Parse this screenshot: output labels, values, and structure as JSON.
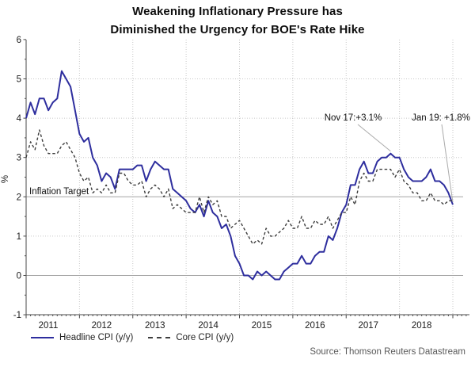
{
  "title": {
    "line1": "Weakening Inflationary Pressure has",
    "line2": "Diminished the Urgency for BOE's Rate Hike"
  },
  "annotations": {
    "inflation_target": "Inflation Target"
  },
  "legend": [
    {
      "label": "Headline CPI (y/y)",
      "style": "solid",
      "color": "#2e2e9e"
    },
    {
      "label": "Core CPI (y/y)",
      "style": "dashed",
      "color": "#3d3d3d"
    }
  ],
  "source": "Source: Thomson Reuters Datastream",
  "chart_data": {
    "type": "line",
    "xlabel": "",
    "ylabel": "%",
    "ylim": [
      -1,
      6
    ],
    "frequency": "monthly",
    "x_start": "2011-01",
    "x_end": "2019-01",
    "x_ticklabels": [
      "2011",
      "2012",
      "2013",
      "2014",
      "2015",
      "2016",
      "2017",
      "2018"
    ],
    "y_ticks": [
      -1,
      0,
      1,
      2,
      3,
      4,
      5,
      6
    ],
    "y_ticklabels": [
      "-1",
      "0",
      "1",
      "2",
      "3",
      "4",
      "5",
      "6"
    ],
    "dotted_gridlines": [
      1,
      3,
      4,
      5
    ],
    "solid_gridlines": [
      0,
      2
    ],
    "legend_position": "bottom-left",
    "series": [
      {
        "name": "Headline CPI (y/y)",
        "color": "#2e2e9e",
        "dash": null,
        "width": 2,
        "values": [
          4.0,
          4.4,
          4.1,
          4.5,
          4.5,
          4.2,
          4.4,
          4.5,
          5.2,
          5.0,
          4.8,
          4.2,
          3.6,
          3.4,
          3.5,
          3.0,
          2.8,
          2.4,
          2.6,
          2.5,
          2.2,
          2.7,
          2.7,
          2.7,
          2.7,
          2.8,
          2.8,
          2.4,
          2.7,
          2.9,
          2.8,
          2.7,
          2.7,
          2.2,
          2.1,
          2.0,
          1.9,
          1.7,
          1.6,
          1.8,
          1.5,
          1.9,
          1.6,
          1.5,
          1.2,
          1.3,
          1.0,
          0.5,
          0.3,
          0.0,
          0.0,
          -0.1,
          0.1,
          0.0,
          0.1,
          0.0,
          -0.1,
          -0.1,
          0.1,
          0.2,
          0.3,
          0.3,
          0.5,
          0.3,
          0.3,
          0.5,
          0.6,
          0.6,
          1.0,
          0.9,
          1.2,
          1.6,
          1.8,
          2.3,
          2.3,
          2.7,
          2.9,
          2.6,
          2.6,
          2.9,
          3.0,
          3.0,
          3.1,
          3.0,
          3.0,
          2.7,
          2.5,
          2.4,
          2.4,
          2.4,
          2.5,
          2.7,
          2.4,
          2.4,
          2.3,
          2.1,
          1.8
        ]
      },
      {
        "name": "Core CPI (y/y)",
        "color": "#3d3d3d",
        "dash": "3.5 2.8",
        "width": 1.4,
        "values": [
          3.0,
          3.4,
          3.2,
          3.7,
          3.3,
          3.1,
          3.1,
          3.1,
          3.3,
          3.4,
          3.2,
          3.0,
          2.6,
          2.4,
          2.5,
          2.1,
          2.2,
          2.1,
          2.3,
          2.1,
          2.1,
          2.6,
          2.6,
          2.4,
          2.3,
          2.3,
          2.4,
          2.0,
          2.2,
          2.3,
          2.2,
          2.0,
          2.2,
          1.7,
          1.8,
          1.7,
          1.6,
          1.6,
          1.6,
          2.0,
          1.6,
          2.0,
          1.8,
          1.9,
          1.5,
          1.5,
          1.2,
          1.3,
          1.4,
          1.2,
          1.0,
          0.8,
          0.9,
          0.8,
          1.2,
          1.0,
          1.0,
          1.1,
          1.2,
          1.4,
          1.2,
          1.2,
          1.5,
          1.2,
          1.2,
          1.4,
          1.3,
          1.3,
          1.5,
          1.2,
          1.4,
          1.6,
          1.6,
          2.0,
          1.8,
          2.4,
          2.6,
          2.4,
          2.4,
          2.7,
          2.7,
          2.7,
          2.7,
          2.5,
          2.7,
          2.4,
          2.3,
          2.1,
          2.1,
          1.9,
          1.9,
          2.1,
          1.9,
          1.9,
          1.8,
          1.9,
          1.9
        ]
      }
    ],
    "callouts": [
      {
        "text": "Nov 17:+3.1%",
        "month": "2017-11",
        "value": 3.1
      },
      {
        "text": "Jan 19: +1.8%",
        "month": "2019-01",
        "value": 1.8
      }
    ]
  }
}
